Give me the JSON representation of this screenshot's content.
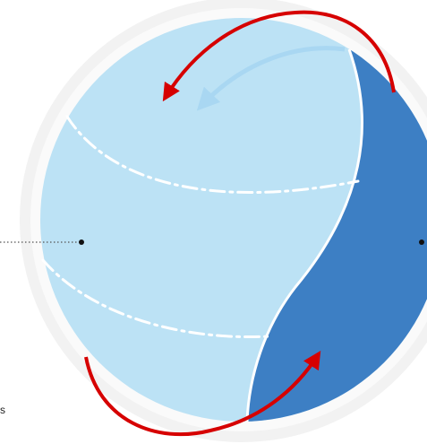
{
  "colors": {
    "halo": "#F2F2F2",
    "halo_ring": "#FAFAFA",
    "sphere_light": "#BCE2F5",
    "sphere_dark": "#3D7FC4",
    "boundary": "#FFFFFF",
    "arrow_red": "#D60000",
    "arrow_light": "#A9D7F2",
    "dotted_line": "#555555",
    "dot": "#111111"
  },
  "icons": {
    "rotation_arrow_top": "curved-arrow-red-top",
    "rotation_arrow_bottom": "curved-arrow-red-bottom",
    "flow_arrow": "curved-arrow-light-blue"
  },
  "corner_label": "s"
}
